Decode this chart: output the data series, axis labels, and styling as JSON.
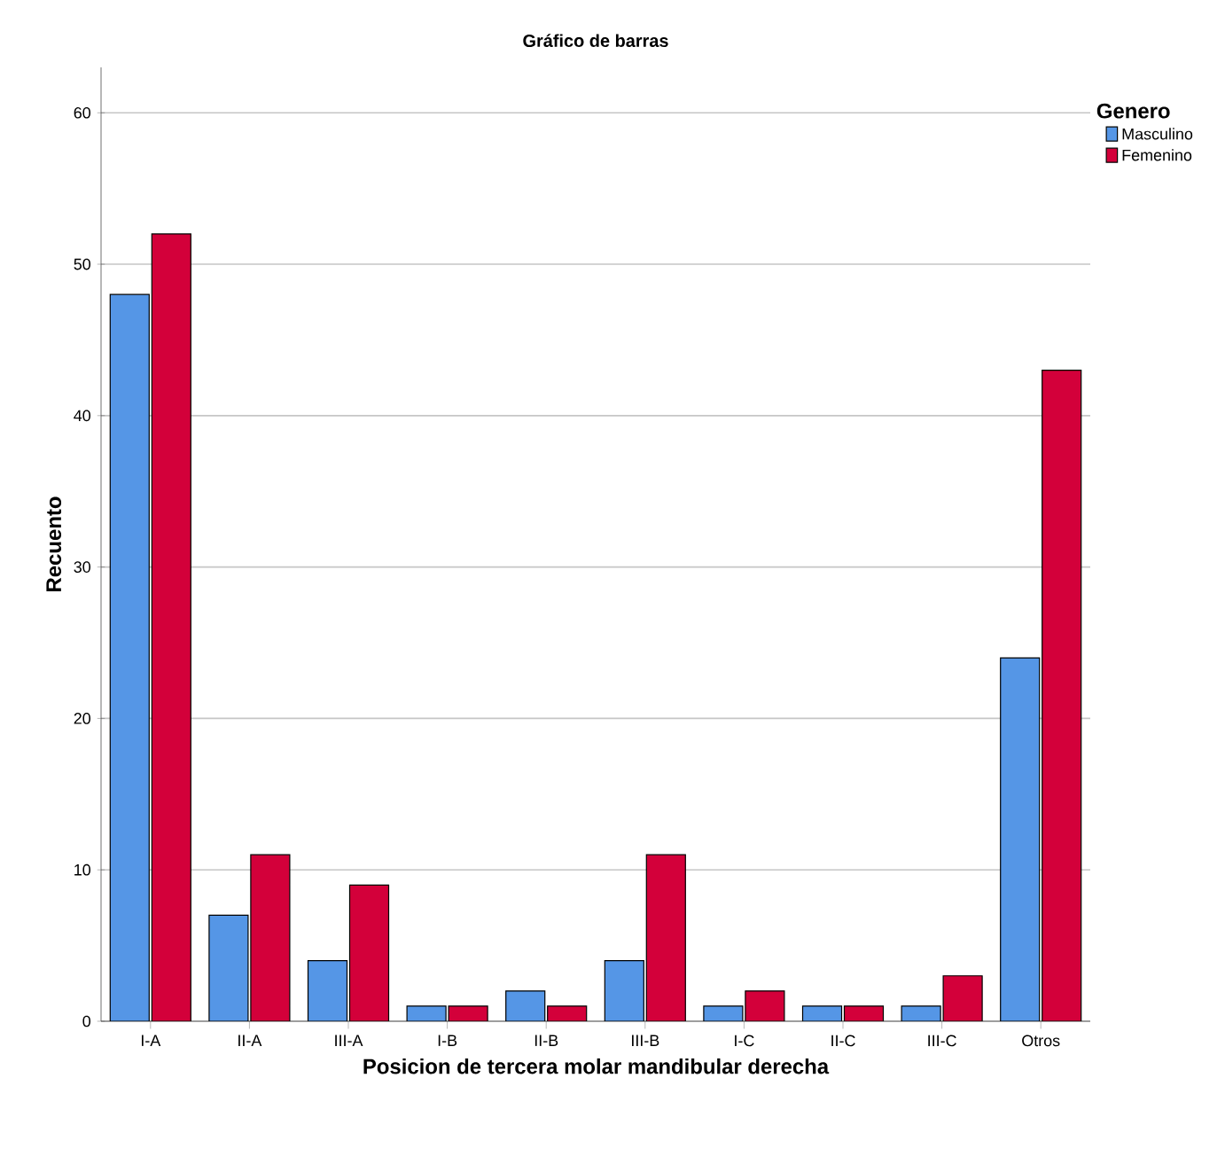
{
  "chart_data": {
    "type": "bar",
    "title": "Gráfico de barras",
    "xlabel": "Posicion de tercera molar mandibular derecha",
    "ylabel": "Recuento",
    "legend_title": "Genero",
    "categories": [
      "I-A",
      "II-A",
      "III-A",
      "I-B",
      "II-B",
      "III-B",
      "I-C",
      "II-C",
      "III-C",
      "Otros"
    ],
    "series": [
      {
        "name": "Masculino",
        "color": "#5596e6",
        "values": [
          48,
          7,
          4,
          1,
          2,
          4,
          1,
          1,
          1,
          24
        ]
      },
      {
        "name": "Femenino",
        "color": "#d3003a",
        "values": [
          52,
          11,
          9,
          1,
          1,
          11,
          2,
          1,
          3,
          43
        ]
      }
    ],
    "ylim": [
      0,
      63
    ],
    "yticks": [
      0,
      10,
      20,
      30,
      40,
      50,
      60
    ],
    "grid": "y",
    "legend": "top right"
  }
}
